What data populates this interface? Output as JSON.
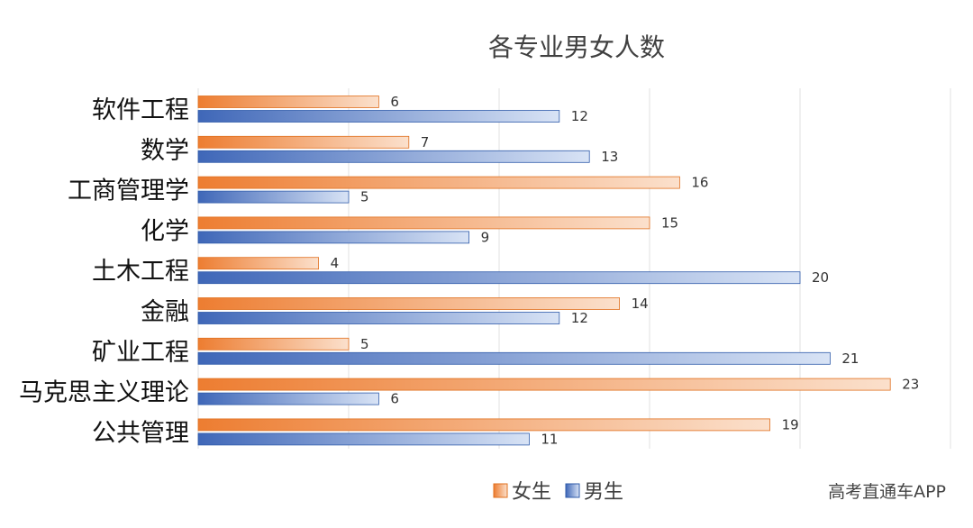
{
  "chart_data": {
    "type": "bar",
    "orientation": "horizontal",
    "title": "各专业男女人数",
    "categories": [
      "软件工程",
      "数学",
      "工商管理学",
      "化学",
      "土木工程",
      "金融",
      "矿业工程",
      "马克思主义理论",
      "公共管理"
    ],
    "series": [
      {
        "name": "女生",
        "values": [
          6,
          7,
          16,
          15,
          4,
          14,
          5,
          23,
          19
        ],
        "color": "#ED7D31"
      },
      {
        "name": "男生",
        "values": [
          12,
          13,
          5,
          9,
          20,
          12,
          21,
          6,
          11
        ],
        "color": "#4472C4"
      }
    ],
    "xlim": [
      0,
      25
    ],
    "grid": true,
    "legend": "bottom-center",
    "data_labels": true
  },
  "watermark": "高考直通车APP",
  "colors": {
    "female": "#ED7D31",
    "male": "#4472C4",
    "grid": "#E2E2E2"
  }
}
